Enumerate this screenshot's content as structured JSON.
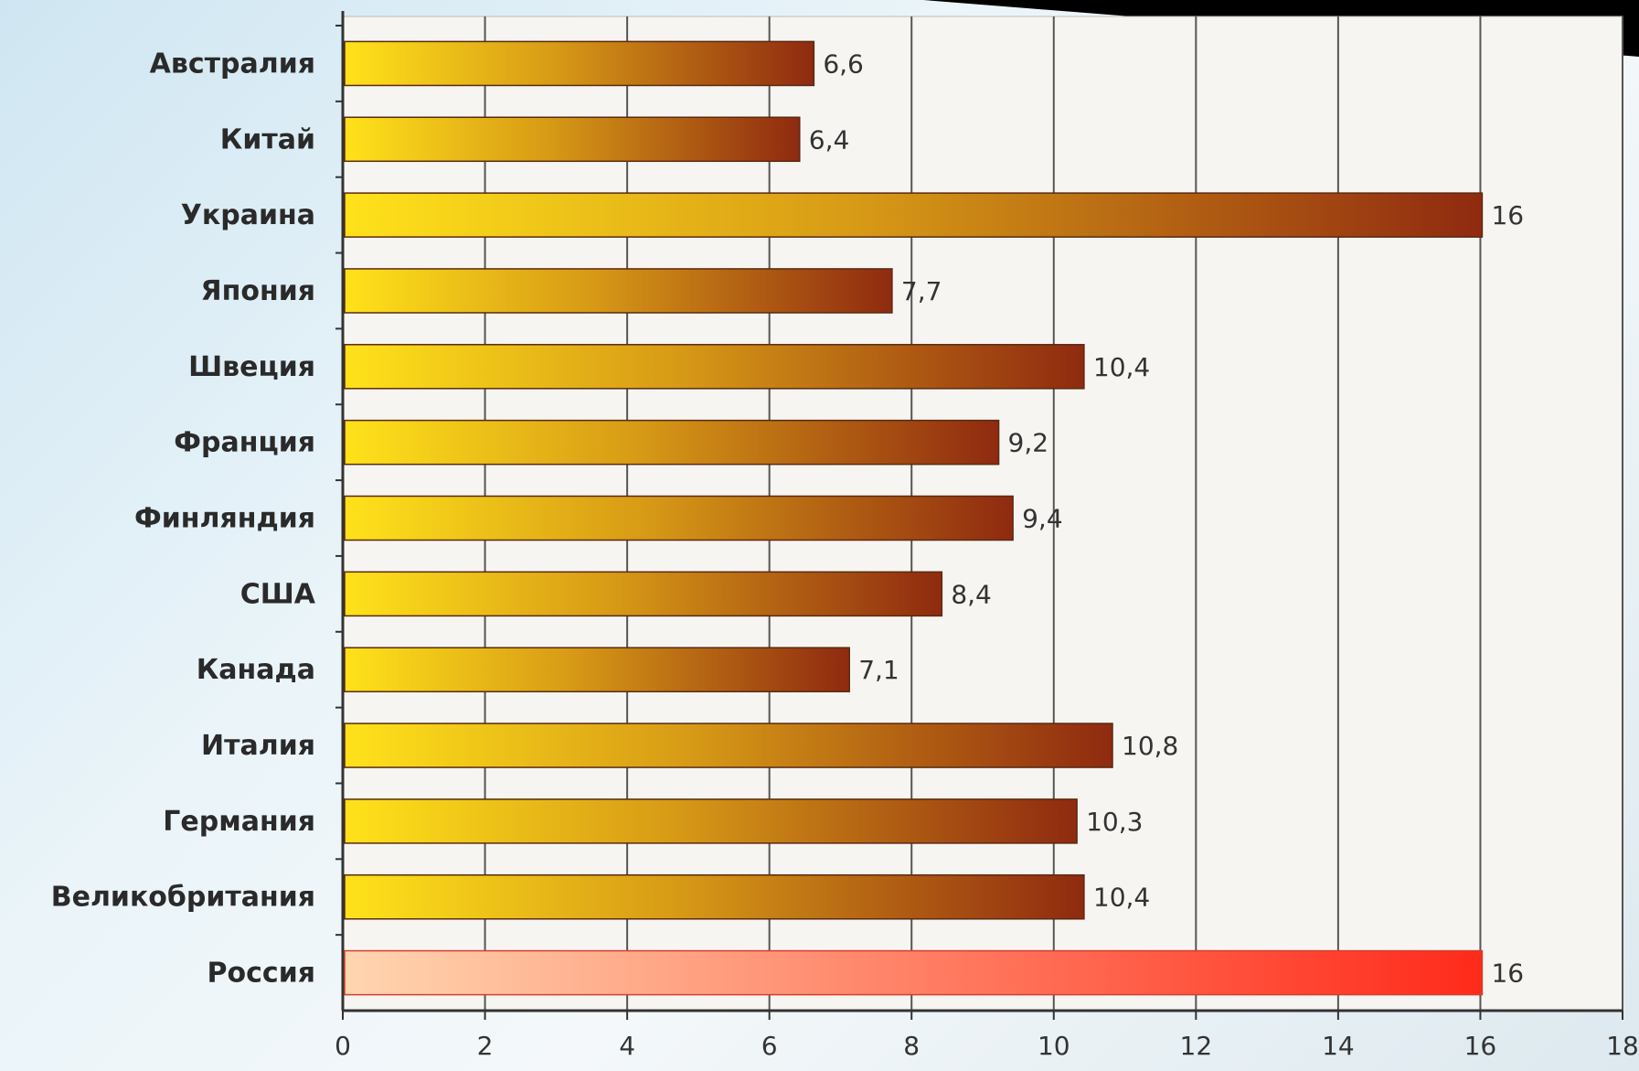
{
  "chart_data": {
    "type": "bar",
    "orientation": "horizontal",
    "title": "",
    "xlabel": "",
    "ylabel": "",
    "xlim": [
      0,
      18
    ],
    "x_ticks": [
      "0",
      "2",
      "4",
      "6",
      "8",
      "10",
      "12",
      "14",
      "16",
      "18"
    ],
    "grid": "vertical",
    "categories": [
      "Австралия",
      "Китай",
      "Украина",
      "Япония",
      "Швеция",
      "Франция",
      "Финляндия",
      "США",
      "Канада",
      "Италия",
      "Германия",
      "Великобритания",
      "Россия"
    ],
    "values": [
      6.6,
      6.4,
      16,
      7.7,
      10.4,
      9.2,
      9.4,
      8.4,
      7.1,
      10.8,
      10.3,
      10.4,
      16
    ],
    "value_labels": [
      "6,6",
      "6,4",
      "16",
      "7,7",
      "10,4",
      "9,2",
      "9,4",
      "8,4",
      "7,1",
      "10,8",
      "10,3",
      "10,4",
      "16"
    ],
    "highlight": "Россия",
    "colors": {
      "bar_start": "#ffe21a",
      "bar_mid": "#d79a16",
      "bar_end": "#8f2a10",
      "highlight_start": "#ffd6b0",
      "highlight_end": "#ff2a1a",
      "highlight_label": "#e03020",
      "plot_background": "#f7f5f2",
      "grid": "#555555",
      "top_banner": "#000000"
    }
  }
}
